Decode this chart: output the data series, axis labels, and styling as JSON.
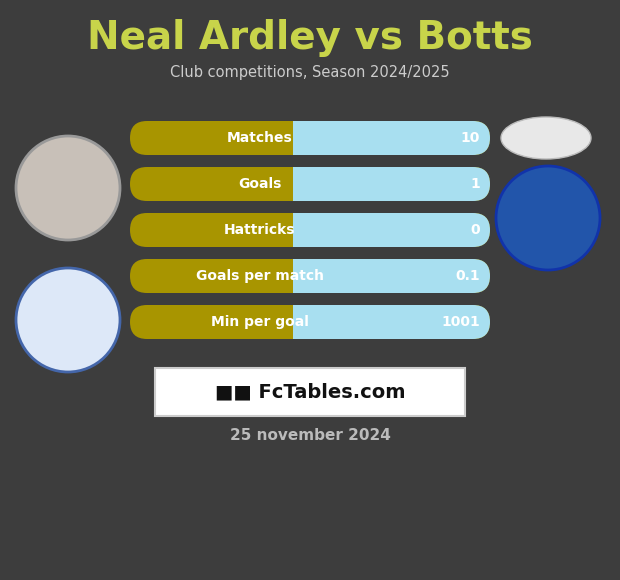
{
  "title": "Neal Ardley vs Botts",
  "subtitle": "Club competitions, Season 2024/2025",
  "background_color": "#3d3d3d",
  "title_color": "#c8d44a",
  "subtitle_color": "#cccccc",
  "bar_labels": [
    "Matches",
    "Goals",
    "Hattricks",
    "Goals per match",
    "Min per goal"
  ],
  "bar_values": [
    "10",
    "1",
    "0",
    "0.1",
    "1001"
  ],
  "bar_left_color": "#a89500",
  "bar_right_color": "#a8dff0",
  "bar_text_color": "#ffffff",
  "watermark_bg": "#ffffff",
  "watermark_text_color": "#111111",
  "date_text": "25 november 2024",
  "date_color": "#bbbbbb",
  "fig_width": 6.2,
  "fig_height": 5.8,
  "dpi": 100
}
